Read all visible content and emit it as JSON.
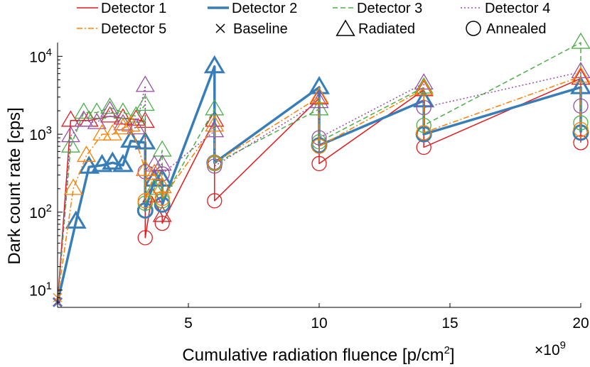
{
  "chart_data": {
    "type": "line",
    "title": "",
    "xlabel": "Cumulative radiation fluence [p/cm²]",
    "xlabel_main": "Cumulative radiation fluence [p/cm",
    "xlabel_sup": "2",
    "xlabel_end": "]",
    "ylabel": "Dark count rate [cps]",
    "x_unit_multiplier": "×10⁹",
    "x_multiplier_base": "×10",
    "x_multiplier_exp": "9",
    "xlim": [
      0,
      20
    ],
    "ylim": [
      6,
      15000
    ],
    "yscale": "log",
    "x_ticks": [
      {
        "value": 5,
        "label": "5"
      },
      {
        "value": 10,
        "label": "10"
      },
      {
        "value": 15,
        "label": "15"
      },
      {
        "value": 20,
        "label": "20"
      }
    ],
    "y_ticks": [
      {
        "value": 10,
        "base": "10",
        "exp": "1"
      },
      {
        "value": 100,
        "base": "10",
        "exp": "2"
      },
      {
        "value": 1000,
        "base": "10",
        "exp": "3"
      },
      {
        "value": 10000,
        "base": "10",
        "exp": "4"
      }
    ],
    "legend": [
      {
        "label": "Detector 1",
        "kind": "line",
        "series": 0
      },
      {
        "label": "Detector 2",
        "kind": "line",
        "series": 1
      },
      {
        "label": "Detector 3",
        "kind": "line",
        "series": 2
      },
      {
        "label": "Detector 4",
        "kind": "line",
        "series": 3
      },
      {
        "label": "Detector 5",
        "kind": "line",
        "series": 4
      },
      {
        "label": "Baseline",
        "kind": "marker",
        "marker": "x"
      },
      {
        "label": "Radiated",
        "kind": "marker",
        "marker": "triangle"
      },
      {
        "label": "Annealed",
        "kind": "marker",
        "marker": "circle"
      }
    ],
    "series": [
      {
        "name": "Detector 1",
        "color": "#e41a1c",
        "dash": "",
        "width": 1.5,
        "points": [
          {
            "x": 0.0,
            "y": 7,
            "m": "x"
          },
          {
            "x": 0.5,
            "y": 1500,
            "m": "t"
          },
          {
            "x": 1.2,
            "y": 1500,
            "m": "t"
          },
          {
            "x": 2.0,
            "y": 1700,
            "m": "t"
          },
          {
            "x": 2.5,
            "y": 1600,
            "m": "t"
          },
          {
            "x": 3.0,
            "y": 1550,
            "m": "t"
          },
          {
            "x": 3.35,
            "y": 1450,
            "m": "t"
          },
          {
            "x": 3.35,
            "y": 47,
            "m": "c"
          },
          {
            "x": 3.6,
            "y": 160,
            "m": "t"
          },
          {
            "x": 4.0,
            "y": 90,
            "m": "t"
          },
          {
            "x": 4.0,
            "y": 72,
            "m": "c"
          },
          {
            "x": 6.0,
            "y": 1500,
            "m": "t"
          },
          {
            "x": 6.0,
            "y": 140,
            "m": "c"
          },
          {
            "x": 10.0,
            "y": 2900,
            "m": "t"
          },
          {
            "x": 10.0,
            "y": 420,
            "m": "c"
          },
          {
            "x": 14.0,
            "y": 3700,
            "m": "t"
          },
          {
            "x": 14.0,
            "y": 680,
            "m": "c"
          },
          {
            "x": 20.0,
            "y": 5200,
            "m": "t"
          },
          {
            "x": 20.0,
            "y": 780,
            "m": "c"
          }
        ]
      },
      {
        "name": "Detector 2",
        "color": "#377eb8",
        "dash": "",
        "width": 3.5,
        "points": [
          {
            "x": 0.0,
            "y": 7,
            "m": "x"
          },
          {
            "x": 0.7,
            "y": 75,
            "m": "t"
          },
          {
            "x": 1.2,
            "y": 380,
            "m": "t"
          },
          {
            "x": 1.7,
            "y": 400,
            "m": "t"
          },
          {
            "x": 2.1,
            "y": 430,
            "m": "t"
          },
          {
            "x": 2.5,
            "y": 400,
            "m": "t"
          },
          {
            "x": 2.8,
            "y": 820,
            "m": "t"
          },
          {
            "x": 3.35,
            "y": 780,
            "m": "t"
          },
          {
            "x": 3.35,
            "y": 105,
            "m": "c"
          },
          {
            "x": 3.7,
            "y": 260,
            "m": "t"
          },
          {
            "x": 4.0,
            "y": 260,
            "m": "t"
          },
          {
            "x": 4.0,
            "y": 125,
            "m": "c"
          },
          {
            "x": 6.0,
            "y": 7400,
            "m": "t"
          },
          {
            "x": 6.0,
            "y": 430,
            "m": "c"
          },
          {
            "x": 10.0,
            "y": 4000,
            "m": "t"
          },
          {
            "x": 10.0,
            "y": 720,
            "m": "c"
          },
          {
            "x": 14.0,
            "y": 2700,
            "m": "t"
          },
          {
            "x": 14.0,
            "y": 1000,
            "m": "c"
          },
          {
            "x": 20.0,
            "y": 4000,
            "m": "t"
          },
          {
            "x": 20.0,
            "y": 1050,
            "m": "c"
          }
        ]
      },
      {
        "name": "Detector 3",
        "color": "#4daf4a",
        "dash": "7,4",
        "width": 1.5,
        "points": [
          {
            "x": 0.0,
            "y": 7,
            "m": "x"
          },
          {
            "x": 0.5,
            "y": 700,
            "m": "t"
          },
          {
            "x": 1.0,
            "y": 1900,
            "m": "t"
          },
          {
            "x": 1.5,
            "y": 1900,
            "m": "t"
          },
          {
            "x": 2.0,
            "y": 2200,
            "m": "t"
          },
          {
            "x": 2.5,
            "y": 1900,
            "m": "t"
          },
          {
            "x": 3.0,
            "y": 1700,
            "m": "t"
          },
          {
            "x": 3.35,
            "y": 2400,
            "m": "t"
          },
          {
            "x": 3.35,
            "y": 130,
            "m": "c"
          },
          {
            "x": 3.7,
            "y": 200,
            "m": "t"
          },
          {
            "x": 4.0,
            "y": 620,
            "m": "t"
          },
          {
            "x": 4.0,
            "y": 140,
            "m": "c"
          },
          {
            "x": 6.0,
            "y": 2100,
            "m": "t"
          },
          {
            "x": 6.0,
            "y": 420,
            "m": "c"
          },
          {
            "x": 10.0,
            "y": 2100,
            "m": "t"
          },
          {
            "x": 10.0,
            "y": 800,
            "m": "c"
          },
          {
            "x": 14.0,
            "y": 4000,
            "m": "t"
          },
          {
            "x": 14.0,
            "y": 1300,
            "m": "c"
          },
          {
            "x": 20.0,
            "y": 15000,
            "m": "t"
          },
          {
            "x": 20.0,
            "y": 1400,
            "m": "c"
          }
        ]
      },
      {
        "name": "Detector 4",
        "color": "#984ea3",
        "dash": "2,3",
        "width": 1.5,
        "points": [
          {
            "x": 0.0,
            "y": 7,
            "m": "x"
          },
          {
            "x": 0.5,
            "y": 950,
            "m": "t"
          },
          {
            "x": 1.0,
            "y": 1500,
            "m": "t"
          },
          {
            "x": 1.5,
            "y": 1400,
            "m": "t"
          },
          {
            "x": 2.0,
            "y": 2000,
            "m": "t"
          },
          {
            "x": 2.5,
            "y": 1350,
            "m": "t"
          },
          {
            "x": 3.0,
            "y": 1200,
            "m": "t"
          },
          {
            "x": 3.35,
            "y": 4200,
            "m": "t"
          },
          {
            "x": 3.35,
            "y": 330,
            "m": "c"
          },
          {
            "x": 3.7,
            "y": 400,
            "m": "t"
          },
          {
            "x": 4.0,
            "y": 410,
            "m": "t"
          },
          {
            "x": 4.0,
            "y": 310,
            "m": "c"
          },
          {
            "x": 6.0,
            "y": 1100,
            "m": "t"
          },
          {
            "x": 6.0,
            "y": 390,
            "m": "c"
          },
          {
            "x": 10.0,
            "y": 2600,
            "m": "t"
          },
          {
            "x": 10.0,
            "y": 900,
            "m": "c"
          },
          {
            "x": 14.0,
            "y": 4500,
            "m": "t"
          },
          {
            "x": 14.0,
            "y": 2200,
            "m": "c"
          },
          {
            "x": 20.0,
            "y": 6300,
            "m": "t"
          },
          {
            "x": 20.0,
            "y": 2300,
            "m": "c"
          }
        ]
      },
      {
        "name": "Detector 5",
        "color": "#ff7f00",
        "dash": "8,3,2,3",
        "width": 1.5,
        "points": [
          {
            "x": 0.0,
            "y": 8,
            "m": "x"
          },
          {
            "x": 0.6,
            "y": 200,
            "m": "t"
          },
          {
            "x": 1.1,
            "y": 530,
            "m": "t"
          },
          {
            "x": 1.7,
            "y": 1000,
            "m": "t"
          },
          {
            "x": 2.1,
            "y": 1000,
            "m": "t"
          },
          {
            "x": 2.5,
            "y": 1200,
            "m": "t"
          },
          {
            "x": 2.8,
            "y": 1300,
            "m": "t"
          },
          {
            "x": 3.35,
            "y": 350,
            "m": "t"
          },
          {
            "x": 3.35,
            "y": 140,
            "m": "c"
          },
          {
            "x": 3.7,
            "y": 310,
            "m": "t"
          },
          {
            "x": 4.0,
            "y": 210,
            "m": "t"
          },
          {
            "x": 4.0,
            "y": 150,
            "m": "c"
          },
          {
            "x": 6.0,
            "y": 1300,
            "m": "t"
          },
          {
            "x": 6.0,
            "y": 430,
            "m": "c"
          },
          {
            "x": 10.0,
            "y": 3000,
            "m": "t"
          },
          {
            "x": 10.0,
            "y": 700,
            "m": "c"
          },
          {
            "x": 14.0,
            "y": 3800,
            "m": "t"
          },
          {
            "x": 14.0,
            "y": 1050,
            "m": "c"
          },
          {
            "x": 20.0,
            "y": 5500,
            "m": "t"
          },
          {
            "x": 20.0,
            "y": 1150,
            "m": "c"
          }
        ]
      }
    ]
  }
}
